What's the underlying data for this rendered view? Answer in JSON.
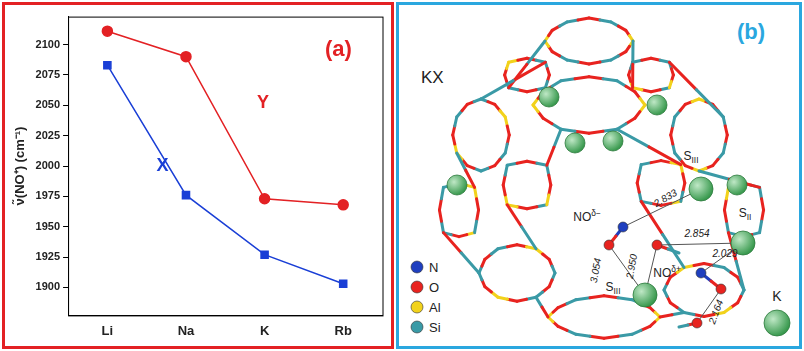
{
  "chart_data": {
    "type": "line",
    "annotations": [
      "(a)"
    ],
    "y_label": "ν̃(NO⁺) (cm⁻¹)",
    "categories": [
      "Li",
      "Na",
      "K",
      "Rb"
    ],
    "series": [
      {
        "name": "X",
        "color": "#1a3fd6",
        "marker": "square",
        "values": [
          2083,
          1976,
          1927,
          1903
        ]
      },
      {
        "name": "Y",
        "color": "#e32124",
        "marker": "circle",
        "values": [
          2111,
          2090,
          1973,
          1968
        ]
      }
    ],
    "ylim": [
      1877,
      2123
    ],
    "yticks": [
      1900,
      1925,
      1950,
      1975,
      2000,
      2025,
      2050,
      2075,
      2100
    ],
    "grid": false
  },
  "panel_b": {
    "panel_label": "(b)",
    "framework": "KX",
    "sites": [
      {
        "base": "S",
        "sub": "III"
      },
      {
        "base": "S",
        "sub": "II"
      },
      {
        "base": "S",
        "sub": "III"
      }
    ],
    "molecules": [
      {
        "base": "NO",
        "sup": "δ−"
      },
      {
        "base": "NO",
        "sup": "δ+"
      }
    ],
    "distances": [
      "2.833",
      "2.854",
      "3.054",
      "2.950",
      "2.029",
      "2.164"
    ],
    "legend": [
      {
        "label": "N",
        "color": "#1f3fbf"
      },
      {
        "label": "O",
        "color": "#e8231f"
      },
      {
        "label": "Al",
        "color": "#f2d21b"
      },
      {
        "label": "Si",
        "color": "#3a9aa6"
      }
    ],
    "cation": {
      "label": "K",
      "color": "#3a9a4f"
    }
  }
}
